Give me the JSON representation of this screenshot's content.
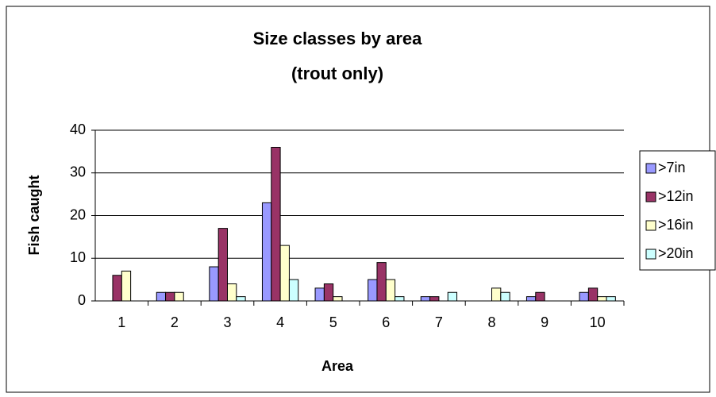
{
  "chart_data": {
    "type": "bar",
    "title": "Size classes by area",
    "subtitle": "(trout only)",
    "x_label": "Area",
    "y_label": "Fish caught",
    "categories": [
      "1",
      "2",
      "3",
      "4",
      "5",
      "6",
      "7",
      "8",
      "9",
      "10"
    ],
    "series": [
      {
        "name": ">7in",
        "color": "#9999ff",
        "values": [
          0,
          2,
          8,
          23,
          3,
          5,
          1,
          0,
          1,
          2
        ]
      },
      {
        "name": ">12in",
        "color": "#993366",
        "values": [
          6,
          2,
          17,
          36,
          4,
          9,
          1,
          0,
          2,
          3
        ]
      },
      {
        "name": ">16in",
        "color": "#ffffcc",
        "values": [
          7,
          2,
          4,
          13,
          1,
          5,
          0,
          3,
          0,
          1
        ]
      },
      {
        "name": ">20in",
        "color": "#ccffff",
        "values": [
          0,
          0,
          1,
          5,
          0,
          1,
          2,
          2,
          0,
          1
        ]
      }
    ],
    "ylim": [
      0,
      40
    ],
    "yticks": [
      0,
      10,
      20,
      30,
      40
    ],
    "grid": true,
    "legend": "right"
  }
}
